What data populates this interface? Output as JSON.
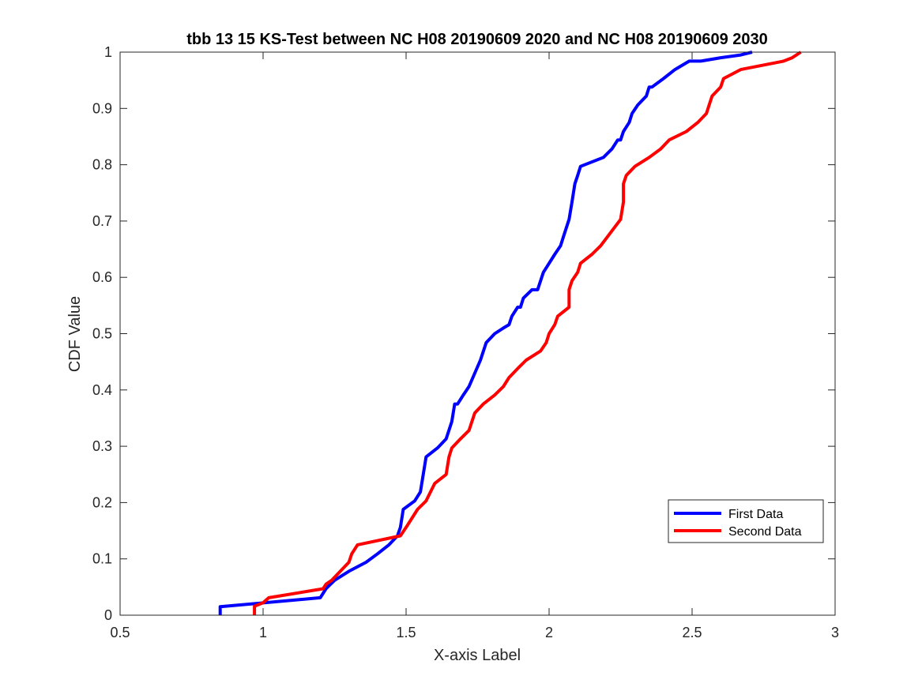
{
  "chart_data": {
    "type": "line",
    "title": "tbb 13 15 KS-Test between NC H08 20190609 2020 and NC H08 20190609 2030",
    "xlabel": "X-axis Label",
    "ylabel": "CDF Value",
    "xlim": [
      0.5,
      3
    ],
    "ylim": [
      0,
      1
    ],
    "xticks": [
      "0.5",
      "1",
      "1.5",
      "2",
      "2.5",
      "3"
    ],
    "yticks": [
      "0",
      "0.1",
      "0.2",
      "0.3",
      "0.4",
      "0.5",
      "0.6",
      "0.7",
      "0.8",
      "0.9",
      "1"
    ],
    "grid": false,
    "legend_position": "bottom-right",
    "series": [
      {
        "name": "First Data",
        "color": "#0000ff",
        "x": [
          0.85,
          0.85,
          1.2,
          1.22,
          1.25,
          1.3,
          1.36,
          1.4,
          1.44,
          1.47,
          1.48,
          1.49,
          1.53,
          1.55,
          1.56,
          1.57,
          1.61,
          1.64,
          1.66,
          1.67,
          1.68,
          1.7,
          1.72,
          1.76,
          1.78,
          1.81,
          1.84,
          1.86,
          1.87,
          1.89,
          1.9,
          1.91,
          1.94,
          1.96,
          1.98,
          2.0,
          2.02,
          2.04,
          2.05,
          2.07,
          2.08,
          2.09,
          2.1,
          2.11,
          2.19,
          2.22,
          2.24,
          2.25,
          2.26,
          2.28,
          2.29,
          2.31,
          2.34,
          2.35,
          2.36,
          2.4,
          2.44,
          2.49,
          2.53,
          2.6,
          2.67,
          2.71
        ],
        "y": [
          0,
          0.015,
          0.031,
          0.047,
          0.062,
          0.078,
          0.094,
          0.109,
          0.125,
          0.141,
          0.156,
          0.188,
          0.203,
          0.219,
          0.25,
          0.281,
          0.297,
          0.313,
          0.344,
          0.375,
          0.375,
          0.391,
          0.406,
          0.453,
          0.484,
          0.5,
          0.51,
          0.516,
          0.531,
          0.547,
          0.547,
          0.563,
          0.578,
          0.578,
          0.609,
          0.625,
          0.641,
          0.656,
          0.672,
          0.703,
          0.734,
          0.766,
          0.781,
          0.797,
          0.813,
          0.828,
          0.844,
          0.844,
          0.859,
          0.875,
          0.891,
          0.906,
          0.922,
          0.938,
          0.938,
          0.953,
          0.969,
          0.984,
          0.984,
          0.99,
          0.995,
          1.0
        ]
      },
      {
        "name": "Second Data",
        "color": "#ff0000",
        "x": [
          0.97,
          0.97,
          1.0,
          1.02,
          1.21,
          1.22,
          1.24,
          1.27,
          1.3,
          1.31,
          1.33,
          1.48,
          1.5,
          1.54,
          1.57,
          1.6,
          1.64,
          1.65,
          1.66,
          1.69,
          1.72,
          1.74,
          1.77,
          1.81,
          1.84,
          1.86,
          1.89,
          1.92,
          1.97,
          1.99,
          2.0,
          2.02,
          2.03,
          2.07,
          2.07,
          2.08,
          2.1,
          2.11,
          2.15,
          2.18,
          2.25,
          2.26,
          2.26,
          2.27,
          2.3,
          2.35,
          2.39,
          2.42,
          2.48,
          2.52,
          2.55,
          2.57,
          2.6,
          2.61,
          2.67,
          2.82,
          2.85,
          2.88
        ],
        "y": [
          0,
          0.016,
          0.022,
          0.031,
          0.047,
          0.055,
          0.062,
          0.078,
          0.094,
          0.109,
          0.125,
          0.141,
          0.156,
          0.188,
          0.203,
          0.234,
          0.25,
          0.281,
          0.297,
          0.313,
          0.328,
          0.359,
          0.375,
          0.391,
          0.406,
          0.422,
          0.438,
          0.453,
          0.469,
          0.484,
          0.5,
          0.516,
          0.531,
          0.547,
          0.578,
          0.594,
          0.609,
          0.625,
          0.641,
          0.656,
          0.703,
          0.734,
          0.766,
          0.781,
          0.797,
          0.813,
          0.828,
          0.844,
          0.859,
          0.875,
          0.891,
          0.922,
          0.938,
          0.953,
          0.969,
          0.984,
          0.99,
          1.0
        ]
      }
    ]
  }
}
